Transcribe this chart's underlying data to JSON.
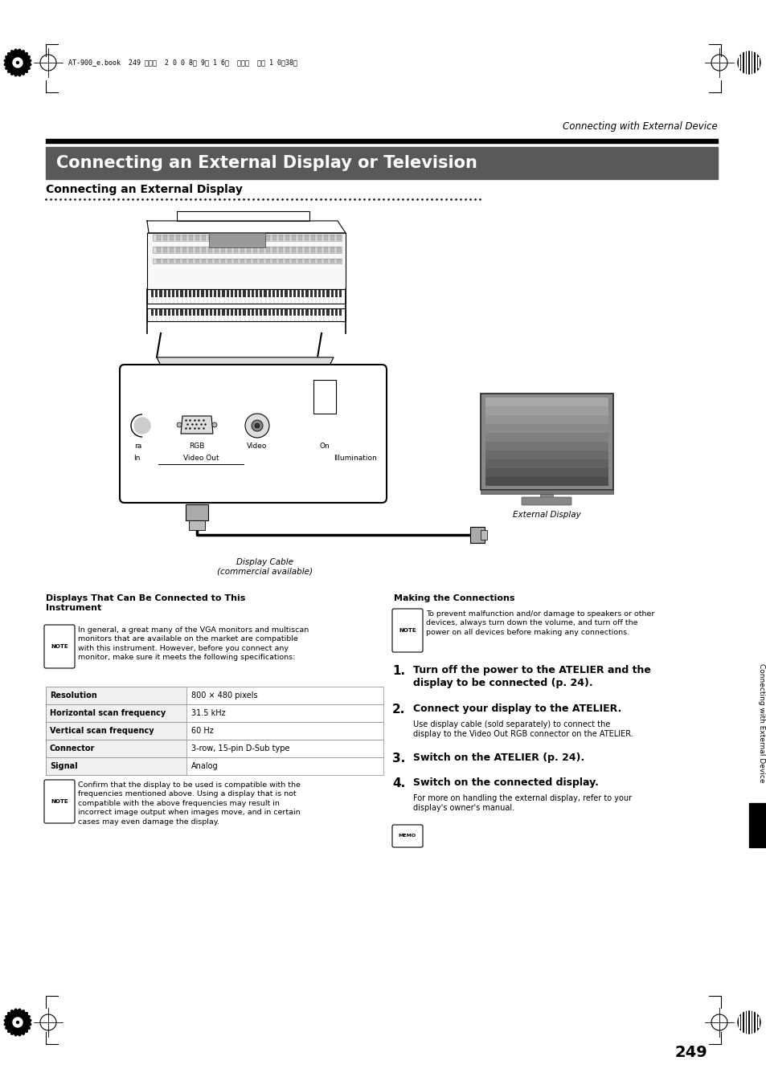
{
  "page_bg": "#ffffff",
  "header_text": "Connecting with External Device",
  "top_bar_text": "AT-900_e.book  249 ページ  2 0 0 8年 9月 1 6日  火曜日  午前 1 0時38分",
  "title_box_bg": "#595959",
  "title_text": "Connecting an External Display or Television",
  "title_text_color": "#ffffff",
  "section_title": "Connecting an External Display",
  "left_col_heading1": "Displays That Can Be Connected to This\nInstrument",
  "left_col_note1": "In general, a great many of the VGA monitors and multiscan\nmonitors that are available on the market are compatible\nwith this instrument. However, before you connect any\nmonitor, make sure it meets the following specifications:",
  "table_headers": [
    "Resolution",
    "Horizontal scan frequency",
    "Vertical scan frequency",
    "Connector",
    "Signal"
  ],
  "table_values": [
    "800 × 480 pixels",
    "31.5 kHz",
    "60 Hz",
    "3-row, 15-pin D-Sub type",
    "Analog"
  ],
  "left_col_note2": "Confirm that the display to be used is compatible with the\nfrequencies mentioned above. Using a display that is not\ncompatible with the above frequencies may result in\nincorrect image output when images move, and in certain\ncases may even damage the display.",
  "right_col_heading": "Making the Connections",
  "right_col_note": "To prevent malfunction and/or damage to speakers or other\ndevices, always turn down the volume, and turn off the\npower on all devices before making any connections.",
  "step1_bold": "Turn off the power to the ATELIER and the\ndisplay to be connected (p. 24).",
  "step2_bold": "Connect your display to the ATELIER.",
  "step2_text": "Use display cable (sold separately) to connect the\ndisplay to the Video Out RGB connector on the ATELIER.",
  "step3_bold": "Switch on the ATELIER (p. 24).",
  "step4_bold": "Switch on the connected display.",
  "step4_text": "For more on handling the external display, refer to your\ndisplay's owner's manual.",
  "page_number": "249",
  "side_label": "Connecting with External Device",
  "diagram_label1": "Display Cable\n(commercial available)",
  "diagram_label2": "External Display"
}
